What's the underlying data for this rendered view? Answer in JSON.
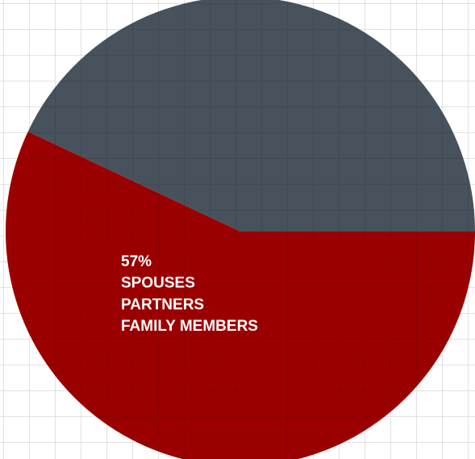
{
  "chart_data": {
    "type": "pie",
    "categories": [
      [
        "SPOUSES",
        "PARTNERS",
        "FAMILY MEMBERS"
      ],
      null
    ],
    "values": [
      57,
      43
    ],
    "value_labels": [
      "57%",
      null
    ],
    "colors": [
      "#9b0000",
      "#47525c"
    ]
  }
}
